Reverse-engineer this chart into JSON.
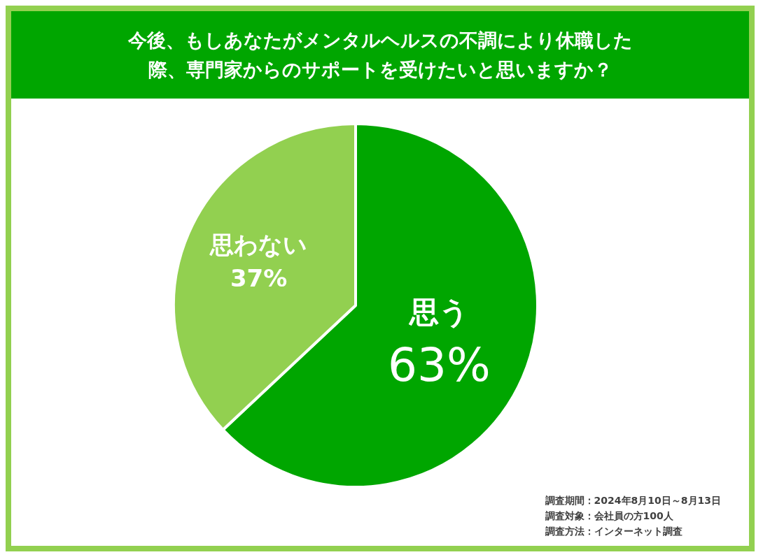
{
  "chart_data": {
    "type": "pie",
    "title": "今後、もしあなたがメンタルヘルスの不調により休職した際、専門家からのサポートを受けたいと思いますか？",
    "categories": [
      "思う",
      "思わない"
    ],
    "values": [
      63,
      37
    ],
    "colors": [
      "#00a600",
      "#92d050"
    ],
    "value_labels": [
      "63%",
      "37%"
    ],
    "legend": false,
    "annotations": [
      "調査期間：2024年8月10日～8月13日",
      "調査対象：会社員の方100人",
      "調査方法：インターネット調査"
    ]
  }
}
